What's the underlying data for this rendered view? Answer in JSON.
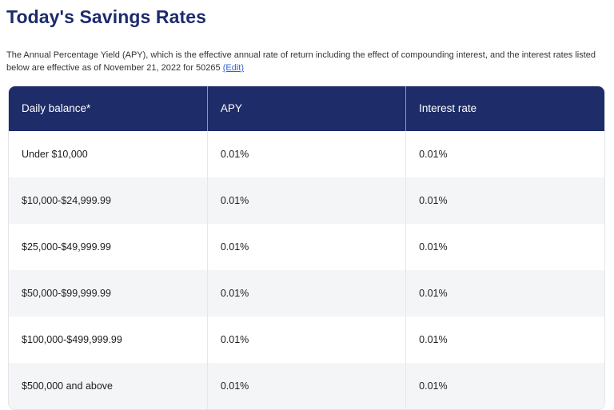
{
  "header": {
    "title": "Today's Savings Rates"
  },
  "intro": {
    "text": "The Annual Percentage Yield (APY), which is the effective annual rate of return including the effect of compounding interest, and the interest rates listed below are effective as of November 21, 2022 for 50265",
    "edit_link_label": "(Edit)"
  },
  "rates_table": {
    "columns": [
      "Daily balance*",
      "APY",
      "Interest rate"
    ],
    "rows": [
      [
        "Under $10,000",
        "0.01%",
        "0.01%"
      ],
      [
        "$10,000-$24,999.99",
        "0.01%",
        "0.01%"
      ],
      [
        "$25,000-$49,999.99",
        "0.01%",
        "0.01%"
      ],
      [
        "$50,000-$99,999.99",
        "0.01%",
        "0.01%"
      ],
      [
        "$100,000-$499,999.99",
        "0.01%",
        "0.01%"
      ],
      [
        "$500,000 and above",
        "0.01%",
        "0.01%"
      ]
    ]
  },
  "colors": {
    "navy_header": "#1e2c69",
    "title_navy": "#1c2b6e",
    "link_blue": "#2f62d9",
    "row_alt_gray": "#f4f5f7",
    "table_border": "#e5e5e9",
    "header_divider": "#8e97b3",
    "body_text": "#1d1d1f"
  }
}
